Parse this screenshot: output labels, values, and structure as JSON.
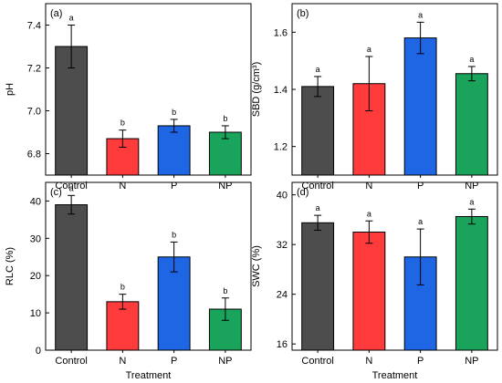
{
  "chart_data": [
    {
      "type": "bar",
      "panel_label": "(a)",
      "categories": [
        "Control",
        "N",
        "P",
        "NP"
      ],
      "values": [
        7.3,
        6.87,
        6.93,
        6.9
      ],
      "errors": [
        0.1,
        0.04,
        0.03,
        0.03
      ],
      "letters": [
        "a",
        "b",
        "b",
        "b"
      ],
      "ylabel": "pH",
      "xlabel": "",
      "ylim": [
        6.7,
        7.5
      ],
      "yticks": [
        6.8,
        7.0,
        7.2,
        7.4
      ],
      "ytick_labels": [
        "6.8",
        "7.0",
        "7.2",
        "7.4"
      ],
      "colors": [
        "#4d4d4d",
        "#ff3b3b",
        "#1f66e5",
        "#1aa35a"
      ]
    },
    {
      "type": "bar",
      "panel_label": "(b)",
      "categories": [
        "Control",
        "N",
        "P",
        "NP"
      ],
      "values": [
        1.41,
        1.42,
        1.58,
        1.455
      ],
      "errors": [
        0.035,
        0.095,
        0.055,
        0.025
      ],
      "letters": [
        "a",
        "a",
        "a",
        "a"
      ],
      "ylabel": "SBD (g/cm³)",
      "xlabel": "",
      "ylim": [
        1.1,
        1.7
      ],
      "yticks": [
        1.2,
        1.4,
        1.6
      ],
      "ytick_labels": [
        "1.2",
        "1.4",
        "1.6"
      ],
      "colors": [
        "#4d4d4d",
        "#ff3b3b",
        "#1f66e5",
        "#1aa35a"
      ]
    },
    {
      "type": "bar",
      "panel_label": "(c)",
      "categories": [
        "Control",
        "N",
        "P",
        "NP"
      ],
      "values": [
        39,
        13,
        25,
        11
      ],
      "errors": [
        2.5,
        2.0,
        4.0,
        3.0
      ],
      "letters": [
        "a",
        "b",
        "b",
        "b"
      ],
      "ylabel": "RLC (%)",
      "xlabel": "Treatment",
      "ylim": [
        0,
        45
      ],
      "yticks": [
        0,
        10,
        20,
        30,
        40
      ],
      "ytick_labels": [
        "0",
        "10",
        "20",
        "30",
        "40"
      ],
      "colors": [
        "#4d4d4d",
        "#ff3b3b",
        "#1f66e5",
        "#1aa35a"
      ]
    },
    {
      "type": "bar",
      "panel_label": "(d)",
      "categories": [
        "Control",
        "N",
        "P",
        "NP"
      ],
      "values": [
        35.5,
        34,
        30,
        36.5
      ],
      "errors": [
        1.2,
        1.8,
        4.5,
        1.2
      ],
      "letters": [
        "a",
        "a",
        "a",
        "a"
      ],
      "ylabel": "SWC (%)",
      "xlabel": "Treatment",
      "ylim": [
        15,
        42
      ],
      "yticks": [
        16,
        24,
        32,
        40
      ],
      "ytick_labels": [
        "16",
        "24",
        "32",
        "40"
      ],
      "colors": [
        "#4d4d4d",
        "#ff3b3b",
        "#1f66e5",
        "#1aa35a"
      ]
    }
  ]
}
